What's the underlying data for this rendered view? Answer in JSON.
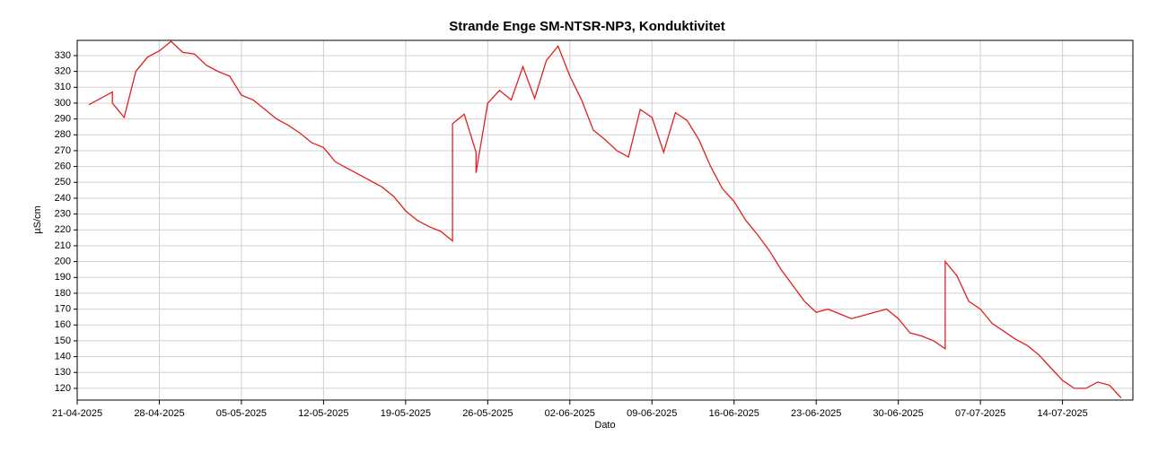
{
  "chart_data": {
    "type": "line",
    "title": "Strande Enge SM-NTSR-NP3, Konduktivitet",
    "x_label": "Dato",
    "y_label": "µS/cm",
    "x": [
      "2025-04-22",
      "2025-04-24",
      "2025-04-24",
      "2025-04-25",
      "2025-04-26",
      "2025-04-27",
      "2025-04-28",
      "2025-04-29",
      "2025-04-30",
      "2025-05-01",
      "2025-05-02",
      "2025-05-03",
      "2025-05-04",
      "2025-05-05",
      "2025-05-06",
      "2025-05-07",
      "2025-05-08",
      "2025-05-09",
      "2025-05-10",
      "2025-05-11",
      "2025-05-12",
      "2025-05-13",
      "2025-05-14",
      "2025-05-15",
      "2025-05-16",
      "2025-05-17",
      "2025-05-18",
      "2025-05-19",
      "2025-05-20",
      "2025-05-21",
      "2025-05-22",
      "2025-05-23",
      "2025-05-23",
      "2025-05-24",
      "2025-05-25",
      "2025-05-25",
      "2025-05-26",
      "2025-05-27",
      "2025-05-28",
      "2025-05-29",
      "2025-05-30",
      "2025-05-31",
      "2025-06-01",
      "2025-06-02",
      "2025-06-03",
      "2025-06-04",
      "2025-06-05",
      "2025-06-06",
      "2025-06-07",
      "2025-06-08",
      "2025-06-09",
      "2025-06-10",
      "2025-06-11",
      "2025-06-12",
      "2025-06-13",
      "2025-06-14",
      "2025-06-15",
      "2025-06-16",
      "2025-06-17",
      "2025-06-18",
      "2025-06-19",
      "2025-06-20",
      "2025-06-21",
      "2025-06-22",
      "2025-06-23",
      "2025-06-24",
      "2025-06-25",
      "2025-06-26",
      "2025-06-27",
      "2025-06-28",
      "2025-06-29",
      "2025-06-30",
      "2025-07-01",
      "2025-07-02",
      "2025-07-03",
      "2025-07-04",
      "2025-07-04",
      "2025-07-05",
      "2025-07-06",
      "2025-07-07",
      "2025-07-08",
      "2025-07-09",
      "2025-07-10",
      "2025-07-11",
      "2025-07-12",
      "2025-07-13",
      "2025-07-14",
      "2025-07-15",
      "2025-07-16",
      "2025-07-17",
      "2025-07-18",
      "2025-07-19"
    ],
    "series": [
      {
        "name": "Konduktivitet",
        "color": "#e02020",
        "values": [
          299,
          307,
          300,
          291,
          320,
          329,
          333,
          339,
          332,
          331,
          324,
          320,
          317,
          305,
          302,
          296,
          290,
          286,
          281,
          275,
          272,
          263,
          259,
          255,
          251,
          247,
          241,
          232,
          226,
          222,
          219,
          213,
          287,
          293,
          269,
          256,
          300,
          308,
          302,
          323,
          303,
          327,
          336,
          317,
          302,
          283,
          277,
          270,
          266,
          296,
          291,
          269,
          294,
          289,
          277,
          260,
          246,
          238,
          226,
          217,
          207,
          195,
          185,
          175,
          168,
          170,
          167,
          164,
          166,
          168,
          170,
          164,
          155,
          153,
          150,
          145,
          200,
          191,
          175,
          170,
          161,
          156,
          151,
          147,
          141,
          133,
          125,
          120,
          120,
          124,
          122,
          114
        ]
      }
    ],
    "xlim": [
      "2025-04-21",
      "2025-07-20"
    ],
    "xticks": [
      {
        "value": "2025-04-21",
        "label": "21-04-2025"
      },
      {
        "value": "2025-04-28",
        "label": "28-04-2025"
      },
      {
        "value": "2025-05-05",
        "label": "05-05-2025"
      },
      {
        "value": "2025-05-12",
        "label": "12-05-2025"
      },
      {
        "value": "2025-05-19",
        "label": "19-05-2025"
      },
      {
        "value": "2025-05-26",
        "label": "26-05-2025"
      },
      {
        "value": "2025-06-02",
        "label": "02-06-2025"
      },
      {
        "value": "2025-06-09",
        "label": "09-06-2025"
      },
      {
        "value": "2025-06-16",
        "label": "16-06-2025"
      },
      {
        "value": "2025-06-23",
        "label": "23-06-2025"
      },
      {
        "value": "2025-06-30",
        "label": "30-06-2025"
      },
      {
        "value": "2025-07-07",
        "label": "07-07-2025"
      },
      {
        "value": "2025-07-14",
        "label": "14-07-2025"
      }
    ],
    "ylim": [
      112.6,
      339.6
    ],
    "yticks": [
      120,
      130,
      140,
      150,
      160,
      170,
      180,
      190,
      200,
      210,
      220,
      230,
      240,
      250,
      260,
      270,
      280,
      290,
      300,
      310,
      320,
      330
    ],
    "grid": true
  }
}
